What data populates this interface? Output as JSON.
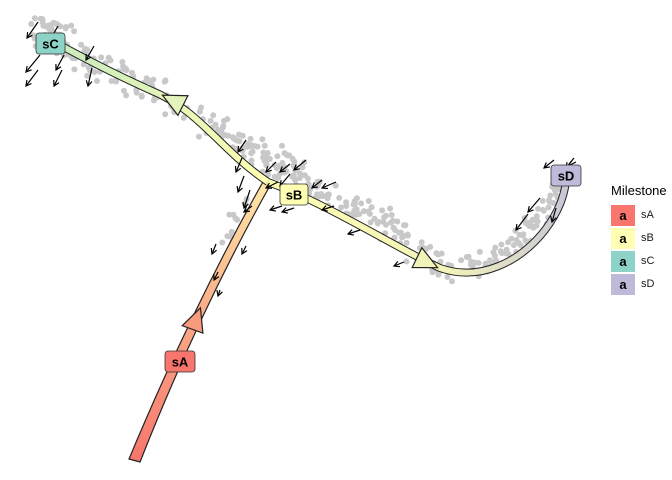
{
  "milestones": [
    {
      "id": "sA",
      "color": "#F8766D"
    },
    {
      "id": "sB",
      "color": "#FFFFB3"
    },
    {
      "id": "sC",
      "color": "#8DD3C7"
    },
    {
      "id": "sD",
      "color": "#BEBADA"
    }
  ],
  "legend": {
    "title": "Milestone",
    "key_glyph": "a",
    "items": [
      {
        "label": "sA",
        "color": "#F8766D"
      },
      {
        "label": "sB",
        "color": "#FFFFB3"
      },
      {
        "label": "sC",
        "color": "#8DD3C7"
      },
      {
        "label": "sD",
        "color": "#BEBADA"
      }
    ]
  },
  "colors": {
    "cells": "#C8C8C8",
    "edge_outline": "#222222",
    "background": "#FFFFFF"
  }
}
